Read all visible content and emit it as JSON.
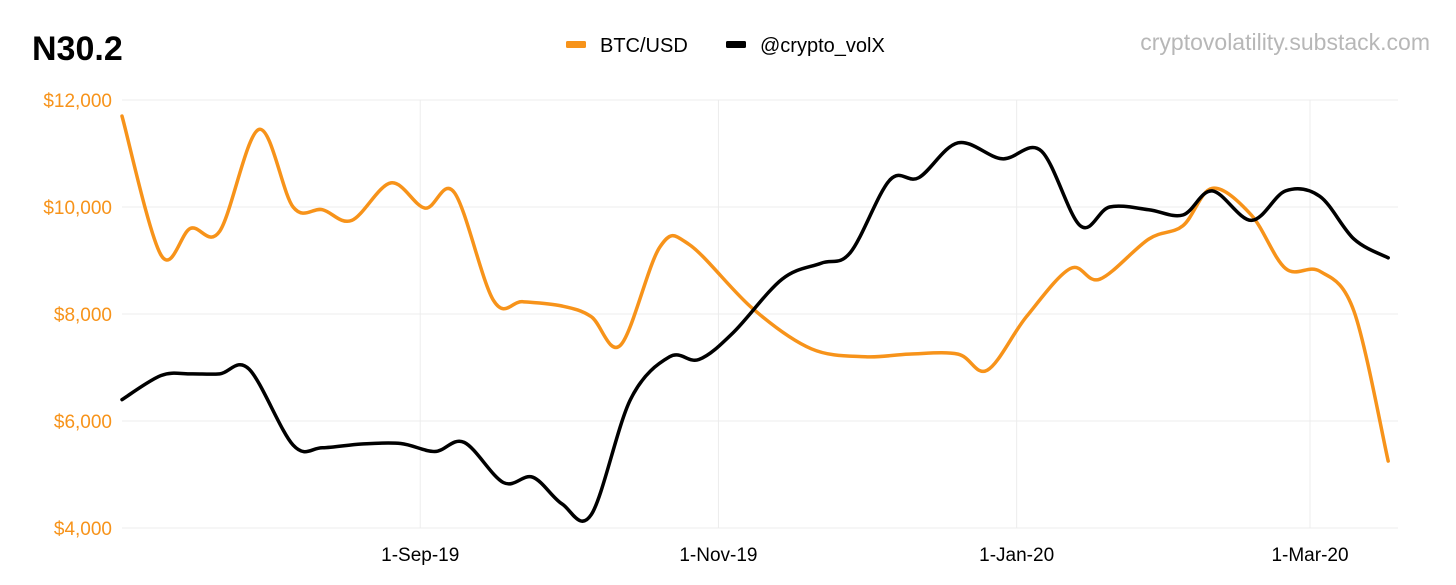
{
  "chart_data": {
    "type": "line",
    "title": "N30.2",
    "watermark": "cryptovolatility.substack.com",
    "legend_position": "top-center",
    "grid": true,
    "x_range": [
      "2019-07-02",
      "2020-03-19"
    ],
    "x_ticks": [
      {
        "date": "2019-09-01",
        "label": "1-Sep-19"
      },
      {
        "date": "2019-11-01",
        "label": "1-Nov-19"
      },
      {
        "date": "2020-01-01",
        "label": "1-Jan-20"
      },
      {
        "date": "2020-03-01",
        "label": "1-Mar-20"
      }
    ],
    "y_axis": {
      "min": 4000,
      "max": 12000,
      "ticks": [
        4000,
        6000,
        8000,
        10000,
        12000
      ],
      "tick_labels": [
        "$4,000",
        "$6,000",
        "$8,000",
        "$10,000",
        "$12,000"
      ],
      "color": "#f7931a"
    },
    "series": [
      {
        "name": "BTC/USD",
        "color": "#f7931a",
        "points": [
          [
            "2019-07-02",
            11700
          ],
          [
            "2019-07-10",
            9100
          ],
          [
            "2019-07-16",
            9600
          ],
          [
            "2019-07-22",
            9550
          ],
          [
            "2019-07-30",
            11450
          ],
          [
            "2019-08-06",
            10000
          ],
          [
            "2019-08-12",
            9950
          ],
          [
            "2019-08-18",
            9750
          ],
          [
            "2019-08-26",
            10450
          ],
          [
            "2019-09-02",
            9980
          ],
          [
            "2019-09-08",
            10270
          ],
          [
            "2019-09-16",
            8250
          ],
          [
            "2019-09-22",
            8230
          ],
          [
            "2019-09-30",
            8150
          ],
          [
            "2019-10-06",
            7950
          ],
          [
            "2019-10-12",
            7420
          ],
          [
            "2019-10-20",
            9250
          ],
          [
            "2019-10-26",
            9300
          ],
          [
            "2019-11-08",
            8100
          ],
          [
            "2019-11-20",
            7350
          ],
          [
            "2019-12-01",
            7200
          ],
          [
            "2019-12-10",
            7250
          ],
          [
            "2019-12-20",
            7250
          ],
          [
            "2019-12-26",
            6950
          ],
          [
            "2020-01-03",
            7950
          ],
          [
            "2020-01-12",
            8850
          ],
          [
            "2020-01-18",
            8650
          ],
          [
            "2020-01-28",
            9400
          ],
          [
            "2020-02-04",
            9650
          ],
          [
            "2020-02-10",
            10350
          ],
          [
            "2020-02-18",
            9850
          ],
          [
            "2020-02-25",
            8850
          ],
          [
            "2020-03-03",
            8800
          ],
          [
            "2020-03-10",
            8050
          ],
          [
            "2020-03-17",
            5250
          ]
        ]
      },
      {
        "name": "@crypto_volX",
        "color": "#000000",
        "points": [
          [
            "2019-07-02",
            6400
          ],
          [
            "2019-07-10",
            6850
          ],
          [
            "2019-07-16",
            6880
          ],
          [
            "2019-07-22",
            6880
          ],
          [
            "2019-07-28",
            6970
          ],
          [
            "2019-08-06",
            5550
          ],
          [
            "2019-08-12",
            5500
          ],
          [
            "2019-08-20",
            5570
          ],
          [
            "2019-08-28",
            5580
          ],
          [
            "2019-09-04",
            5430
          ],
          [
            "2019-09-10",
            5600
          ],
          [
            "2019-09-18",
            4850
          ],
          [
            "2019-09-24",
            4950
          ],
          [
            "2019-09-30",
            4450
          ],
          [
            "2019-10-06",
            4250
          ],
          [
            "2019-10-14",
            6400
          ],
          [
            "2019-10-22",
            7200
          ],
          [
            "2019-10-28",
            7150
          ],
          [
            "2019-11-04",
            7650
          ],
          [
            "2019-11-14",
            8650
          ],
          [
            "2019-11-22",
            8950
          ],
          [
            "2019-11-28",
            9150
          ],
          [
            "2019-12-06",
            10500
          ],
          [
            "2019-12-12",
            10550
          ],
          [
            "2019-12-20",
            11200
          ],
          [
            "2019-12-29",
            10900
          ],
          [
            "2020-01-06",
            11050
          ],
          [
            "2020-01-14",
            9650
          ],
          [
            "2020-01-20",
            10000
          ],
          [
            "2020-01-28",
            9950
          ],
          [
            "2020-02-04",
            9850
          ],
          [
            "2020-02-10",
            10300
          ],
          [
            "2020-02-18",
            9750
          ],
          [
            "2020-02-25",
            10300
          ],
          [
            "2020-03-03",
            10200
          ],
          [
            "2020-03-10",
            9400
          ],
          [
            "2020-03-17",
            9050
          ]
        ]
      }
    ]
  }
}
